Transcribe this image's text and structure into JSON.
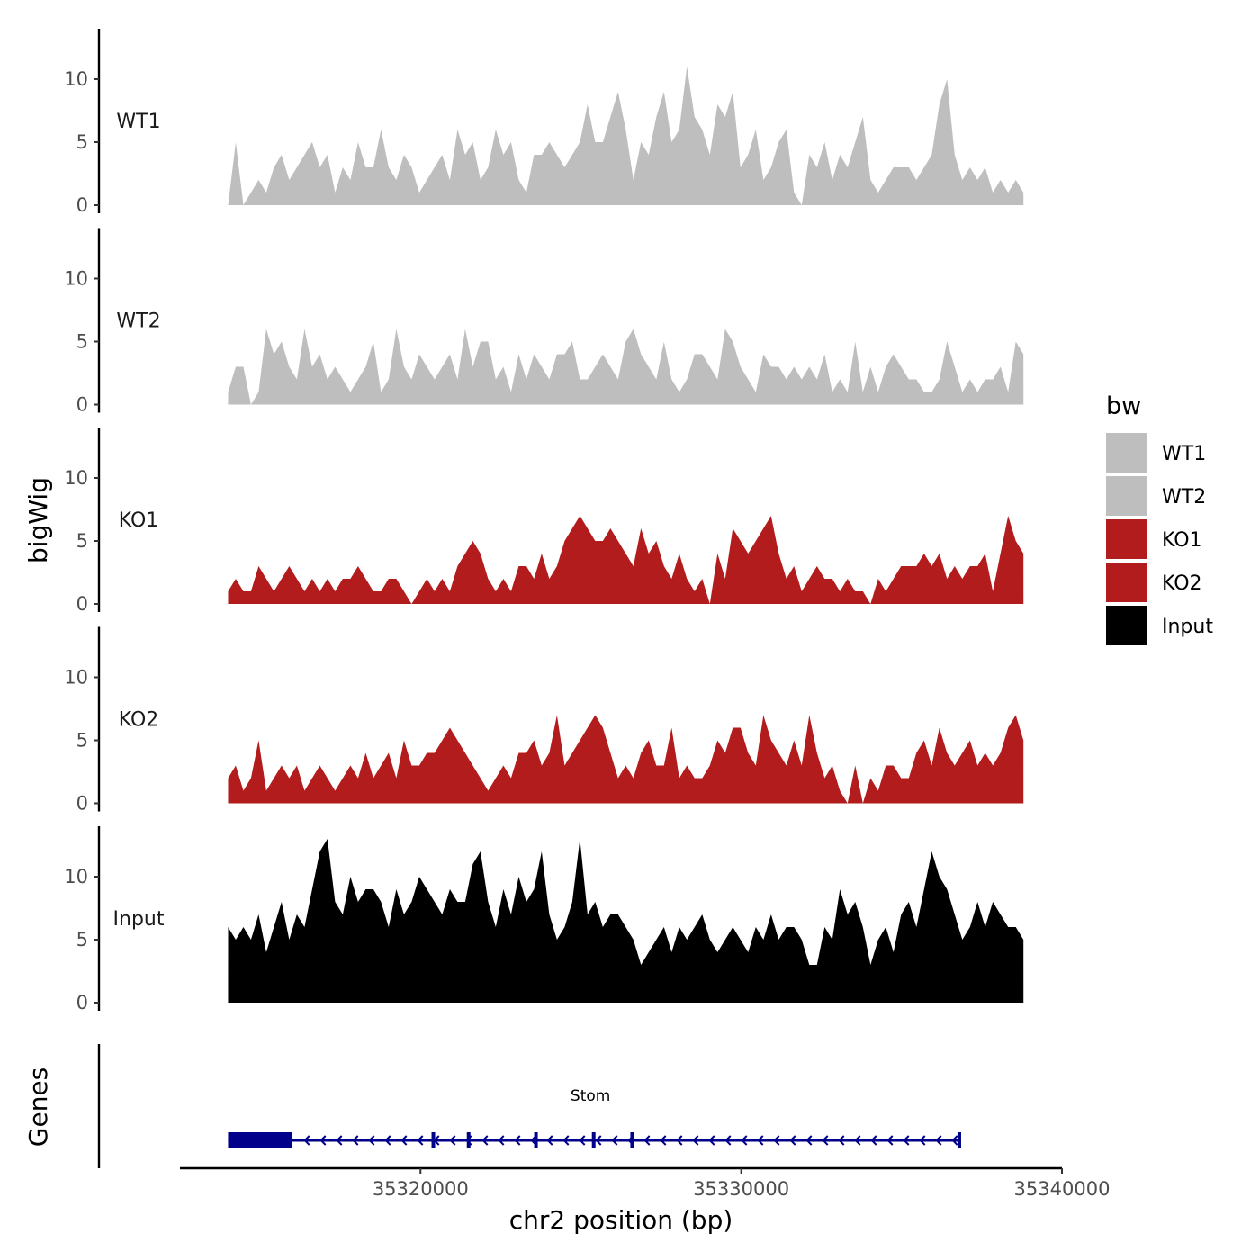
{
  "chart_data": {
    "type": "area",
    "subtype": "genome-browser coverage tracks",
    "x": {
      "label": "chr2 position (bp)",
      "range": [
        35312500,
        35340000
      ],
      "ticks": [
        35320000,
        35330000,
        35340000
      ],
      "tick_labels": [
        "35320000",
        "35330000",
        "35340000"
      ],
      "data_extent": [
        35314000,
        35338800
      ]
    },
    "y": {
      "label": "bigWig",
      "range": [
        0,
        14
      ],
      "ticks": [
        0,
        5,
        10
      ],
      "tick_labels": [
        "0",
        "5",
        "10"
      ]
    },
    "series": [
      {
        "name": "WT1",
        "color": "#bebebe",
        "values": [
          0,
          5,
          0,
          1,
          2,
          1,
          3,
          4,
          2,
          3,
          4,
          5,
          3,
          4,
          1,
          3,
          2,
          5,
          3,
          3,
          6,
          3,
          2,
          4,
          3,
          1,
          2,
          3,
          4,
          2,
          6,
          4,
          5,
          2,
          3,
          6,
          4,
          5,
          2,
          1,
          4,
          4,
          5,
          4,
          3,
          4,
          5,
          8,
          5,
          5,
          7,
          9,
          6,
          2,
          5,
          4,
          7,
          9,
          5,
          6,
          11,
          7,
          6,
          4,
          8,
          7,
          9,
          3,
          4,
          6,
          2,
          3,
          5,
          6,
          1,
          0,
          4,
          3,
          5,
          2,
          4,
          3,
          5,
          7,
          2,
          1,
          2,
          3,
          3,
          3,
          2,
          3,
          4,
          8,
          10,
          4,
          2,
          3,
          2,
          3,
          1,
          2,
          1,
          2,
          1
        ]
      },
      {
        "name": "WT2",
        "color": "#bebebe",
        "values": [
          1,
          3,
          3,
          0,
          1,
          6,
          4,
          5,
          3,
          2,
          6,
          3,
          4,
          2,
          3,
          2,
          1,
          2,
          3,
          5,
          1,
          2,
          6,
          3,
          2,
          4,
          3,
          2,
          3,
          4,
          2,
          6,
          3,
          5,
          5,
          2,
          3,
          1,
          4,
          2,
          4,
          3,
          2,
          4,
          4,
          5,
          2,
          2,
          3,
          4,
          3,
          2,
          5,
          6,
          4,
          3,
          2,
          5,
          2,
          1,
          2,
          4,
          4,
          3,
          2,
          6,
          5,
          3,
          2,
          1,
          4,
          3,
          3,
          2,
          3,
          2,
          3,
          2,
          4,
          1,
          2,
          1,
          5,
          1,
          3,
          1,
          3,
          4,
          3,
          2,
          2,
          1,
          1,
          2,
          5,
          3,
          1,
          2,
          1,
          2,
          2,
          3,
          1,
          5,
          4
        ]
      },
      {
        "name": "KO1",
        "color": "#b21c1c",
        "values": [
          1,
          2,
          1,
          1,
          3,
          2,
          1,
          2,
          3,
          2,
          1,
          2,
          1,
          2,
          1,
          2,
          2,
          3,
          2,
          1,
          1,
          2,
          2,
          1,
          0,
          1,
          2,
          1,
          2,
          1,
          3,
          4,
          5,
          4,
          2,
          1,
          2,
          1,
          3,
          3,
          2,
          4,
          2,
          3,
          5,
          6,
          7,
          6,
          5,
          5,
          6,
          5,
          4,
          3,
          6,
          4,
          5,
          3,
          2,
          4,
          2,
          1,
          2,
          0,
          4,
          2,
          6,
          5,
          4,
          5,
          6,
          7,
          4,
          2,
          3,
          1,
          2,
          3,
          2,
          2,
          1,
          2,
          1,
          1,
          0,
          2,
          1,
          2,
          3,
          3,
          3,
          4,
          3,
          4,
          2,
          3,
          2,
          3,
          3,
          4,
          1,
          4,
          7,
          5,
          4
        ]
      },
      {
        "name": "KO2",
        "color": "#b21c1c",
        "values": [
          2,
          3,
          1,
          2,
          5,
          1,
          2,
          3,
          2,
          3,
          1,
          2,
          3,
          2,
          1,
          2,
          3,
          2,
          4,
          2,
          3,
          4,
          2,
          5,
          3,
          3,
          4,
          4,
          5,
          6,
          5,
          4,
          3,
          2,
          1,
          2,
          3,
          2,
          4,
          4,
          5,
          3,
          4,
          7,
          3,
          4,
          5,
          6,
          7,
          6,
          4,
          2,
          3,
          2,
          4,
          5,
          3,
          3,
          6,
          2,
          3,
          2,
          2,
          3,
          5,
          4,
          6,
          6,
          4,
          3,
          7,
          5,
          4,
          3,
          5,
          3,
          7,
          4,
          2,
          3,
          1,
          0,
          3,
          0,
          2,
          1,
          3,
          3,
          2,
          2,
          4,
          5,
          3,
          6,
          4,
          3,
          4,
          5,
          3,
          4,
          3,
          4,
          6,
          7,
          5
        ]
      },
      {
        "name": "Input",
        "color": "#000000",
        "values": [
          6,
          5,
          6,
          5,
          7,
          4,
          6,
          8,
          5,
          7,
          6,
          9,
          12,
          13,
          8,
          7,
          10,
          8,
          9,
          9,
          8,
          6,
          9,
          7,
          8,
          10,
          9,
          8,
          7,
          9,
          8,
          8,
          11,
          12,
          8,
          6,
          9,
          7,
          10,
          8,
          9,
          12,
          7,
          5,
          6,
          8,
          13,
          7,
          8,
          6,
          7,
          7,
          6,
          5,
          3,
          4,
          5,
          6,
          4,
          6,
          5,
          6,
          7,
          5,
          4,
          5,
          6,
          5,
          4,
          6,
          5,
          7,
          5,
          6,
          6,
          5,
          3,
          3,
          6,
          5,
          9,
          7,
          8,
          6,
          3,
          5,
          6,
          4,
          7,
          8,
          6,
          9,
          12,
          10,
          9,
          7,
          5,
          6,
          8,
          6,
          8,
          7,
          6,
          6,
          5
        ]
      }
    ],
    "legend": {
      "title": "bw",
      "placement": "right",
      "entries": [
        {
          "label": "WT1",
          "color": "#bebebe"
        },
        {
          "label": "WT2",
          "color": "#bebebe"
        },
        {
          "label": "KO1",
          "color": "#b21c1c"
        },
        {
          "label": "KO2",
          "color": "#b21c1c"
        },
        {
          "label": "Input",
          "color": "#000000"
        }
      ]
    },
    "genes": {
      "track_label": "Genes",
      "strand": "-",
      "color": "#00008b",
      "items": [
        {
          "name": "Stom",
          "start": 35314000,
          "end": 35336800,
          "utr_block": [
            35314000,
            35316000
          ],
          "exons": [
            35320400,
            35321500,
            35323600,
            35325400,
            35326600,
            35336800
          ]
        }
      ]
    }
  }
}
